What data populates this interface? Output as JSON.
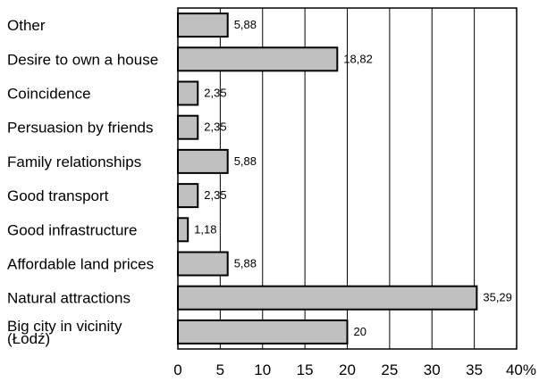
{
  "chart_data": {
    "type": "bar",
    "orientation": "horizontal",
    "categories": [
      "Other",
      "Desire to own a house",
      "Coincidence",
      "Persuasion by friends",
      "Family relationships",
      "Good transport",
      "Good infrastructure",
      "Affordable land prices",
      "Natural attractions",
      "Big city in vicinity\n(Łodź)"
    ],
    "values": [
      5.88,
      18.82,
      2.35,
      2.35,
      5.88,
      2.35,
      1.18,
      5.88,
      35.29,
      20
    ],
    "value_labels": [
      "5,88",
      "18,82",
      "2,35",
      "2,35",
      "5,88",
      "2,35",
      "1,18",
      "5,88",
      "35,29",
      "20"
    ],
    "xlim": [
      0,
      40
    ],
    "xticks": [
      0,
      5,
      10,
      15,
      20,
      25,
      30,
      35,
      40
    ],
    "xtick_labels": [
      "0",
      "5",
      "10",
      "15",
      "20",
      "25",
      "30",
      "35",
      "40%"
    ],
    "grid": "vertical",
    "legend": "none",
    "bar_color": "#c0c0c0",
    "edge_color": "#000000"
  }
}
